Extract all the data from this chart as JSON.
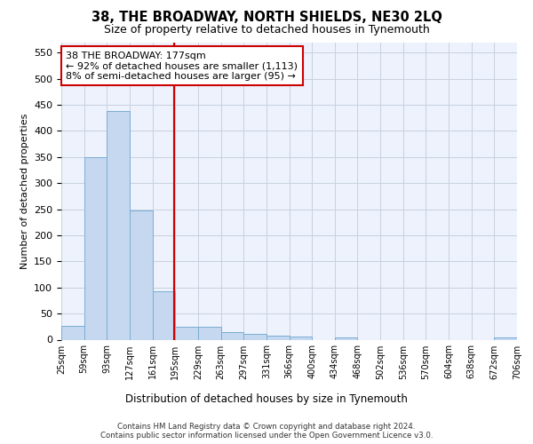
{
  "title": "38, THE BROADWAY, NORTH SHIELDS, NE30 2LQ",
  "subtitle": "Size of property relative to detached houses in Tynemouth",
  "xlabel": "Distribution of detached houses by size in Tynemouth",
  "ylabel": "Number of detached properties",
  "bar_color": "#c5d8f0",
  "bar_edge_color": "#7aadd4",
  "bar_values": [
    27,
    350,
    438,
    247,
    93,
    25,
    25,
    14,
    11,
    8,
    6,
    0,
    5,
    0,
    0,
    0,
    0,
    0,
    0,
    4
  ],
  "bin_labels": [
    "25sqm",
    "59sqm",
    "93sqm",
    "127sqm",
    "161sqm",
    "195sqm",
    "229sqm",
    "263sqm",
    "297sqm",
    "331sqm",
    "366sqm",
    "400sqm",
    "434sqm",
    "468sqm",
    "502sqm",
    "536sqm",
    "570sqm",
    "604sqm",
    "638sqm",
    "672sqm",
    "706sqm"
  ],
  "ylim": [
    0,
    570
  ],
  "yticks": [
    0,
    50,
    100,
    150,
    200,
    250,
    300,
    350,
    400,
    450,
    500,
    550
  ],
  "vline_x": 4.47,
  "vline_color": "#cc0000",
  "annotation_text": "38 THE BROADWAY: 177sqm\n← 92% of detached houses are smaller (1,113)\n8% of semi-detached houses are larger (95) →",
  "annotation_box_color": "#ffffff",
  "annotation_box_edge": "#cc0000",
  "footer_line1": "Contains HM Land Registry data © Crown copyright and database right 2024.",
  "footer_line2": "Contains public sector information licensed under the Open Government Licence v3.0.",
  "background_color": "#edf2fc",
  "grid_color": "#c8d0e0"
}
